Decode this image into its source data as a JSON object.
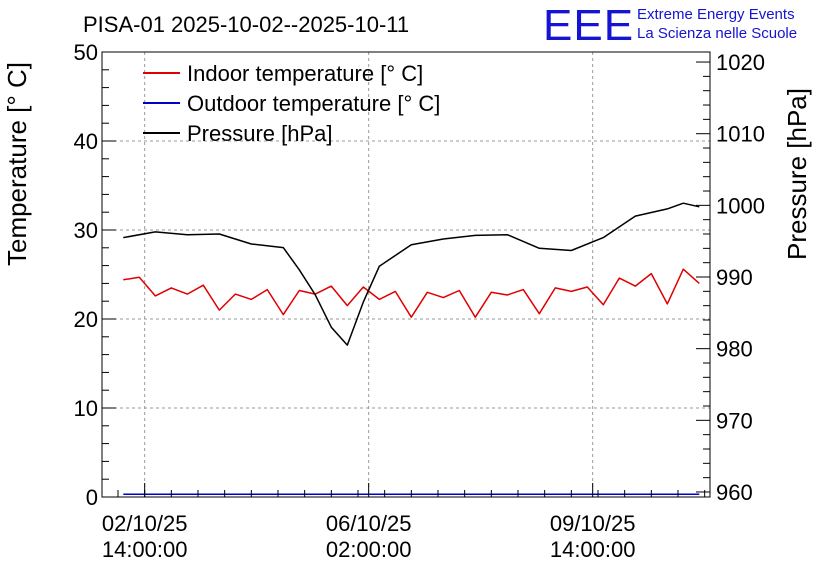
{
  "header": {
    "title": "PISA-01 2025-10-02--2025-10-11",
    "logo_text": "EEE",
    "brand_line1": "Extreme Energy Events",
    "brand_line2": "La Scienza nelle Scuole"
  },
  "colors": {
    "indoor": "#e00000",
    "outdoor": "#0000c8",
    "pressure": "#000000",
    "brand": "#1414d2",
    "grid": "#9a9a9a"
  },
  "chart_data": {
    "type": "line",
    "title": "PISA-01 2025-10-02--2025-10-11",
    "ylabel": "Temperature [° C]",
    "y2label": "Pressure [hPa]",
    "ylim": [
      0,
      50
    ],
    "y2lim": [
      959.3,
      1021.4
    ],
    "yticks": [
      "0",
      "10",
      "20",
      "30",
      "40",
      "50"
    ],
    "y2ticks": [
      "960",
      "970",
      "980",
      "990",
      "1000",
      "1010",
      "1020"
    ],
    "xlim": [
      "2025-10-01 22:00",
      "2025-10-11 10:00"
    ],
    "xticks": [
      {
        "t": "2025-10-02 14:00",
        "line1": "02/10/25",
        "line2": "14:00:00"
      },
      {
        "t": "2025-10-06 02:00",
        "line1": "06/10/25",
        "line2": "02:00:00"
      },
      {
        "t": "2025-10-09 14:00",
        "line1": "09/10/25",
        "line2": "14:00:00"
      }
    ],
    "grid": true,
    "legend_position": "top-left",
    "series": [
      {
        "name": "Indoor temperature [° C]",
        "axis": "left",
        "x": [
          "2025-10-02 06:00",
          "2025-10-02 12:00",
          "2025-10-02 18:00",
          "2025-10-03 00:00",
          "2025-10-03 06:00",
          "2025-10-03 12:00",
          "2025-10-03 18:00",
          "2025-10-04 00:00",
          "2025-10-04 06:00",
          "2025-10-04 12:00",
          "2025-10-04 18:00",
          "2025-10-05 00:00",
          "2025-10-05 06:00",
          "2025-10-05 12:00",
          "2025-10-05 18:00",
          "2025-10-06 00:00",
          "2025-10-06 06:00",
          "2025-10-06 12:00",
          "2025-10-06 18:00",
          "2025-10-07 00:00",
          "2025-10-07 06:00",
          "2025-10-07 12:00",
          "2025-10-07 18:00",
          "2025-10-08 00:00",
          "2025-10-08 06:00",
          "2025-10-08 12:00",
          "2025-10-08 18:00",
          "2025-10-09 00:00",
          "2025-10-09 06:00",
          "2025-10-09 12:00",
          "2025-10-09 18:00",
          "2025-10-10 00:00",
          "2025-10-10 06:00",
          "2025-10-10 12:00",
          "2025-10-10 18:00",
          "2025-10-11 00:00",
          "2025-10-11 06:00"
        ],
        "y": [
          24.4,
          24.7,
          22.6,
          23.5,
          22.8,
          23.8,
          21.0,
          22.8,
          22.2,
          23.3,
          20.5,
          23.2,
          22.8,
          23.7,
          21.5,
          23.6,
          22.2,
          23.1,
          20.2,
          23.0,
          22.4,
          23.2,
          20.2,
          23.0,
          22.7,
          23.3,
          20.6,
          23.5,
          23.1,
          23.6,
          21.6,
          24.6,
          23.7,
          25.1,
          21.7,
          25.6,
          24.0
        ]
      },
      {
        "name": "Outdoor temperature [° C]",
        "axis": "left",
        "x": [
          "2025-10-02 06:00",
          "2025-10-11 06:00"
        ],
        "y": [
          0.3,
          0.3
        ]
      },
      {
        "name": "Pressure [hPa]",
        "axis": "right",
        "x": [
          "2025-10-02 06:00",
          "2025-10-02 18:00",
          "2025-10-03 06:00",
          "2025-10-03 18:00",
          "2025-10-04 06:00",
          "2025-10-04 18:00",
          "2025-10-05 00:00",
          "2025-10-05 06:00",
          "2025-10-05 12:00",
          "2025-10-05 18:00",
          "2025-10-06 00:00",
          "2025-10-06 06:00",
          "2025-10-06 12:00",
          "2025-10-06 18:00",
          "2025-10-07 06:00",
          "2025-10-07 18:00",
          "2025-10-08 06:00",
          "2025-10-08 18:00",
          "2025-10-09 06:00",
          "2025-10-09 18:00",
          "2025-10-10 06:00",
          "2025-10-10 18:00",
          "2025-10-11 00:00",
          "2025-10-11 06:00"
        ],
        "y": [
          995.5,
          996.3,
          995.9,
          996.0,
          994.6,
          994.1,
          991.0,
          987.5,
          983.0,
          980.5,
          986.5,
          991.5,
          993.0,
          994.5,
          995.3,
          995.8,
          995.9,
          994.0,
          993.7,
          995.5,
          998.5,
          999.5,
          1000.3,
          999.8
        ]
      }
    ]
  }
}
